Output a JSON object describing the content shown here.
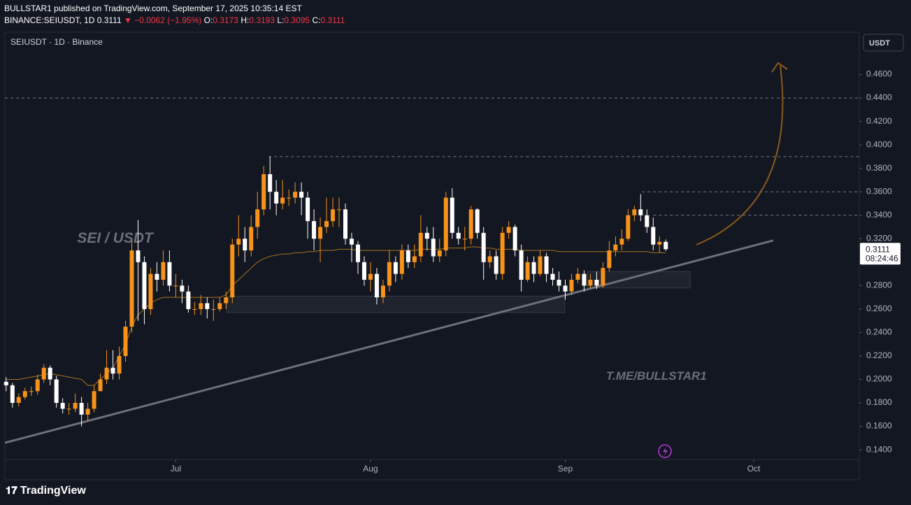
{
  "header": {
    "line1": "BULLSTAR1 published on TradingView.com, September 17, 2025 10:35:14 EST",
    "symbol": "BINANCE:SEIUSDT, 1D",
    "last": "0.3111",
    "change": "▼ −0.0062 (−1.95%)",
    "o_label": "O:",
    "o": "0.3173",
    "h_label": "H:",
    "h": "0.3193",
    "l_label": "L:",
    "l": "0.3095",
    "c_label": "C:",
    "c": "0.3111"
  },
  "footer": {
    "brand": "TradingView"
  },
  "chart_data": {
    "type": "candlestick",
    "title": "SEIUSDT · 1D · Binance",
    "currency": "USDT",
    "x": [
      0,
      1,
      2,
      3,
      4,
      5,
      6,
      7,
      8,
      9,
      10,
      11,
      12,
      13,
      14,
      15,
      16,
      17,
      18,
      19,
      20,
      21,
      22,
      23,
      24,
      25,
      26,
      27,
      28,
      29,
      30,
      31,
      32,
      33,
      34,
      35,
      36,
      37,
      38,
      39,
      40,
      41,
      42,
      43,
      44,
      45,
      46,
      47,
      48,
      49,
      50,
      51,
      52,
      53,
      54,
      55,
      56,
      57,
      58,
      59,
      60,
      61,
      62,
      63,
      64,
      65,
      66,
      67,
      68,
      69,
      70,
      71,
      72,
      73,
      74,
      75,
      76,
      77,
      78,
      79,
      80,
      81,
      82,
      83,
      84,
      85,
      86,
      87,
      88,
      89,
      90,
      91,
      92,
      93,
      94,
      95,
      96,
      97,
      98,
      99,
      100,
      101,
      102,
      103,
      104,
      105
    ],
    "series": [
      {
        "up_color": "#f7931a",
        "down_color": "#ffffff",
        "open": [
          0.198,
          0.195,
          0.18,
          0.185,
          0.19,
          0.19,
          0.2,
          0.21,
          0.2,
          0.18,
          0.175,
          0.175,
          0.18,
          0.17,
          0.175,
          0.19,
          0.2,
          0.21,
          0.205,
          0.22,
          0.245,
          0.31,
          0.3,
          0.26,
          0.29,
          0.285,
          0.3,
          0.28,
          0.28,
          0.275,
          0.26,
          0.26,
          0.265,
          0.26,
          0.26,
          0.265,
          0.27,
          0.315,
          0.32,
          0.31,
          0.33,
          0.345,
          0.375,
          0.36,
          0.35,
          0.355,
          0.355,
          0.36,
          0.355,
          0.335,
          0.32,
          0.33,
          0.335,
          0.345,
          0.345,
          0.32,
          0.315,
          0.3,
          0.285,
          0.29,
          0.27,
          0.28,
          0.3,
          0.29,
          0.31,
          0.3,
          0.305,
          0.325,
          0.32,
          0.305,
          0.31,
          0.355,
          0.325,
          0.32,
          0.32,
          0.345,
          0.325,
          0.3,
          0.305,
          0.29,
          0.325,
          0.33,
          0.31,
          0.285,
          0.3,
          0.29,
          0.305,
          0.29,
          0.285,
          0.28,
          0.275,
          0.285,
          0.29,
          0.28,
          0.285,
          0.28,
          0.295,
          0.31,
          0.315,
          0.32,
          0.34,
          0.345,
          0.34,
          0.33,
          0.315,
          0.3173
        ],
        "high": [
          0.202,
          0.197,
          0.188,
          0.193,
          0.194,
          0.204,
          0.213,
          0.212,
          0.203,
          0.184,
          0.18,
          0.188,
          0.185,
          0.18,
          0.195,
          0.205,
          0.225,
          0.225,
          0.228,
          0.25,
          0.318,
          0.336,
          0.305,
          0.295,
          0.3,
          0.31,
          0.31,
          0.29,
          0.285,
          0.28,
          0.266,
          0.272,
          0.27,
          0.268,
          0.27,
          0.275,
          0.32,
          0.34,
          0.33,
          0.34,
          0.36,
          0.382,
          0.39,
          0.37,
          0.37,
          0.362,
          0.368,
          0.368,
          0.36,
          0.345,
          0.338,
          0.355,
          0.355,
          0.355,
          0.35,
          0.325,
          0.318,
          0.305,
          0.3,
          0.295,
          0.285,
          0.31,
          0.305,
          0.315,
          0.315,
          0.315,
          0.34,
          0.33,
          0.33,
          0.32,
          0.36,
          0.363,
          0.33,
          0.33,
          0.348,
          0.346,
          0.33,
          0.31,
          0.31,
          0.33,
          0.335,
          0.332,
          0.315,
          0.305,
          0.305,
          0.31,
          0.308,
          0.295,
          0.292,
          0.285,
          0.29,
          0.295,
          0.293,
          0.29,
          0.292,
          0.3,
          0.318,
          0.322,
          0.328,
          0.345,
          0.348,
          0.358,
          0.345,
          0.338,
          0.322,
          0.3193
        ],
        "low": [
          0.19,
          0.176,
          0.177,
          0.183,
          0.186,
          0.187,
          0.197,
          0.195,
          0.176,
          0.171,
          0.17,
          0.172,
          0.16,
          0.165,
          0.172,
          0.19,
          0.196,
          0.2,
          0.2,
          0.215,
          0.24,
          0.25,
          0.247,
          0.255,
          0.275,
          0.28,
          0.275,
          0.27,
          0.265,
          0.257,
          0.255,
          0.255,
          0.252,
          0.25,
          0.258,
          0.26,
          0.265,
          0.305,
          0.3,
          0.305,
          0.32,
          0.34,
          0.345,
          0.34,
          0.345,
          0.348,
          0.35,
          0.34,
          0.32,
          0.31,
          0.3,
          0.325,
          0.33,
          0.33,
          0.315,
          0.3,
          0.29,
          0.28,
          0.275,
          0.264,
          0.265,
          0.275,
          0.283,
          0.285,
          0.295,
          0.295,
          0.3,
          0.31,
          0.3,
          0.3,
          0.305,
          0.32,
          0.315,
          0.31,
          0.315,
          0.32,
          0.285,
          0.295,
          0.285,
          0.285,
          0.32,
          0.305,
          0.275,
          0.283,
          0.283,
          0.288,
          0.283,
          0.28,
          0.275,
          0.268,
          0.272,
          0.282,
          0.275,
          0.278,
          0.277,
          0.278,
          0.292,
          0.305,
          0.31,
          0.318,
          0.335,
          0.335,
          0.325,
          0.31,
          0.308,
          0.3095
        ],
        "close": [
          0.195,
          0.18,
          0.185,
          0.19,
          0.19,
          0.2,
          0.21,
          0.2,
          0.18,
          0.175,
          0.175,
          0.18,
          0.17,
          0.175,
          0.19,
          0.2,
          0.21,
          0.205,
          0.22,
          0.245,
          0.31,
          0.3,
          0.26,
          0.29,
          0.285,
          0.3,
          0.28,
          0.28,
          0.275,
          0.26,
          0.26,
          0.265,
          0.26,
          0.26,
          0.265,
          0.27,
          0.315,
          0.32,
          0.31,
          0.33,
          0.345,
          0.375,
          0.36,
          0.35,
          0.355,
          0.355,
          0.36,
          0.355,
          0.335,
          0.32,
          0.33,
          0.335,
          0.345,
          0.345,
          0.32,
          0.315,
          0.3,
          0.285,
          0.29,
          0.27,
          0.28,
          0.3,
          0.29,
          0.31,
          0.3,
          0.305,
          0.325,
          0.32,
          0.305,
          0.31,
          0.355,
          0.325,
          0.32,
          0.32,
          0.345,
          0.325,
          0.3,
          0.305,
          0.29,
          0.325,
          0.33,
          0.31,
          0.285,
          0.3,
          0.29,
          0.305,
          0.29,
          0.285,
          0.28,
          0.275,
          0.285,
          0.29,
          0.28,
          0.285,
          0.28,
          0.295,
          0.31,
          0.315,
          0.32,
          0.34,
          0.345,
          0.34,
          0.33,
          0.315,
          0.3173,
          0.3111
        ]
      },
      {
        "color": "#a8731c",
        "values": [
          0.2,
          0.2,
          0.2,
          0.201,
          0.202,
          0.203,
          0.204,
          0.205,
          0.204,
          0.203,
          0.202,
          0.201,
          0.2,
          0.195,
          0.195,
          0.2,
          0.205,
          0.21,
          0.22,
          0.23,
          0.245,
          0.255,
          0.26,
          0.265,
          0.268,
          0.27,
          0.27,
          0.27,
          0.27,
          0.27,
          0.27,
          0.27,
          0.27,
          0.27,
          0.27,
          0.272,
          0.28,
          0.285,
          0.29,
          0.295,
          0.3,
          0.303,
          0.305,
          0.306,
          0.307,
          0.307,
          0.308,
          0.308,
          0.309,
          0.309,
          0.31,
          0.31,
          0.31,
          0.311,
          0.311,
          0.311,
          0.31,
          0.31,
          0.31,
          0.31,
          0.31,
          0.31,
          0.31,
          0.31,
          0.31,
          0.31,
          0.311,
          0.311,
          0.311,
          0.311,
          0.312,
          0.312,
          0.312,
          0.312,
          0.313,
          0.313,
          0.312,
          0.312,
          0.311,
          0.311,
          0.311,
          0.311,
          0.31,
          0.31,
          0.31,
          0.31,
          0.31,
          0.31,
          0.309,
          0.309,
          0.309,
          0.309,
          0.309,
          0.309,
          0.309,
          0.309,
          0.309,
          0.309,
          0.309,
          0.309,
          0.309,
          0.309,
          0.309,
          0.308,
          0.308,
          0.308
        ]
      }
    ],
    "xlim": [
      -0.2,
      135.8
    ],
    "xticks": [
      {
        "value": 27,
        "label": "Jul"
      },
      {
        "value": 58,
        "label": "Aug"
      },
      {
        "value": 89,
        "label": "Sep"
      },
      {
        "value": 119,
        "label": "Oct"
      }
    ],
    "ylim": [
      0.1317,
      0.4961
    ],
    "yticks": [
      {
        "value": 0.14,
        "label": "0.1400"
      },
      {
        "value": 0.16,
        "label": "0.1600"
      },
      {
        "value": 0.18,
        "label": "0.1800"
      },
      {
        "value": 0.2,
        "label": "0.2000"
      },
      {
        "value": 0.22,
        "label": "0.2200"
      },
      {
        "value": 0.24,
        "label": "0.2400"
      },
      {
        "value": 0.26,
        "label": "0.2600"
      },
      {
        "value": 0.28,
        "label": "0.2800"
      },
      {
        "value": 0.3,
        "label": "0.3000"
      },
      {
        "value": 0.32,
        "label": "0.3200"
      },
      {
        "value": 0.34,
        "label": "0.3400"
      },
      {
        "value": 0.36,
        "label": "0.3600"
      },
      {
        "value": 0.38,
        "label": "0.3800"
      },
      {
        "value": 0.4,
        "label": "0.4000"
      },
      {
        "value": 0.42,
        "label": "0.4200"
      },
      {
        "value": 0.44,
        "label": "0.4400"
      },
      {
        "value": 0.46,
        "label": "0.4600"
      }
    ],
    "last_price": {
      "value": 0.3111,
      "label": "0.3111",
      "countdown": "08:24:46"
    },
    "levels": [
      {
        "value": 0.44,
        "from": -0.2
      },
      {
        "value": 0.39,
        "from": 41.8
      },
      {
        "value": 0.36,
        "from": 101.2
      },
      {
        "value": 0.34,
        "from": 103
      }
    ],
    "trendline": {
      "x": [
        -0.2,
        122.1
      ],
      "y": [
        0.146,
        0.3185
      ],
      "color": "#6e6f78"
    },
    "zones": [
      {
        "x": [
          35.1,
          88.9
        ],
        "y": [
          0.257,
          0.271
        ]
      },
      {
        "x": [
          92.5,
          108.9
        ],
        "y": [
          0.278,
          0.292
        ]
      }
    ],
    "annotations": [
      {
        "text": "SEI / USDT",
        "x": 11.3,
        "y": 0.32
      },
      {
        "text": "T.ME/BULLSTAR1",
        "x": 95.5,
        "y": 0.2025
      }
    ]
  }
}
